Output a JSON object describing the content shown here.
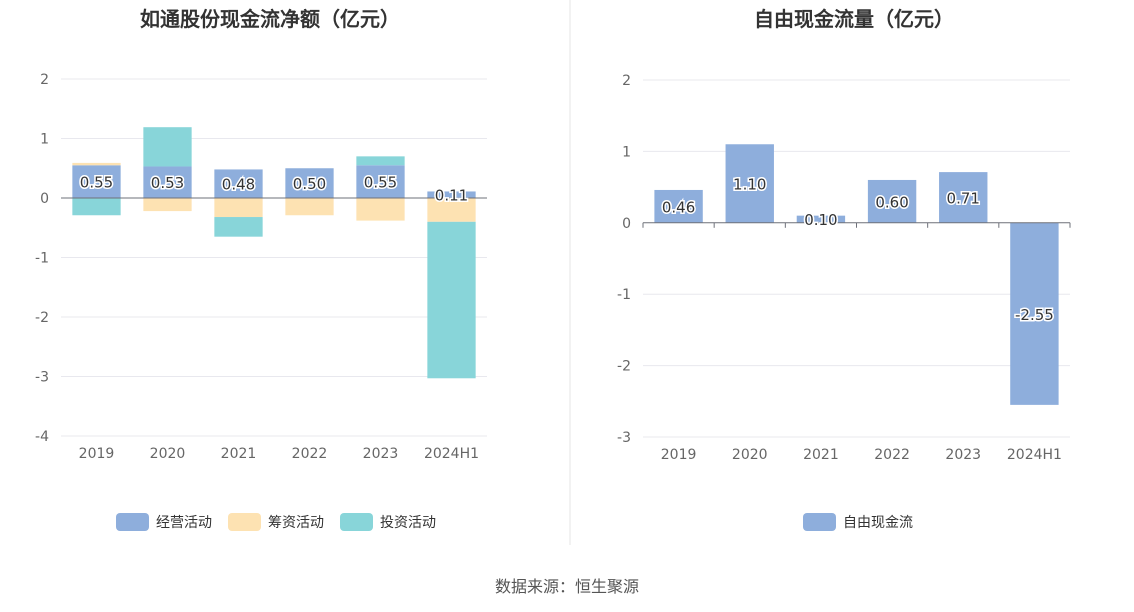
{
  "chart_data": [
    {
      "type": "bar",
      "stacked": true,
      "title": "如通股份现金流净额（亿元）",
      "categories": [
        "2019",
        "2020",
        "2021",
        "2022",
        "2023",
        "2024H1"
      ],
      "ylim": [
        -4,
        2
      ],
      "yticks": [
        2,
        1,
        0,
        -1,
        -2,
        -3,
        -4
      ],
      "grid": true,
      "legend_position": "bottom",
      "series": [
        {
          "name": "经营活动",
          "color": "#8eaedc",
          "values": [
            0.55,
            0.53,
            0.48,
            0.5,
            0.55,
            0.11
          ],
          "labels": [
            "0.55",
            "0.53",
            "0.48",
            "0.50",
            "0.55",
            "0.11"
          ]
        },
        {
          "name": "筹资活动",
          "color": "#fde2b2",
          "values": [
            0.04,
            -0.22,
            -0.32,
            -0.29,
            -0.38,
            -0.4
          ]
        },
        {
          "name": "投资活动",
          "color": "#88d5d9",
          "values": [
            -0.29,
            0.66,
            -0.33,
            0.0,
            0.15,
            -2.63
          ]
        }
      ]
    },
    {
      "type": "bar",
      "title": "自由现金流量（亿元）",
      "categories": [
        "2019",
        "2020",
        "2021",
        "2022",
        "2023",
        "2024H1"
      ],
      "ylim": [
        -3,
        2
      ],
      "yticks": [
        2,
        1,
        0,
        -1,
        -2,
        -3
      ],
      "grid": true,
      "legend_position": "bottom",
      "series": [
        {
          "name": "自由现金流",
          "color": "#8eaedc",
          "values": [
            0.46,
            1.1,
            0.1,
            0.6,
            0.71,
            -2.55
          ],
          "labels": [
            "0.46",
            "1.10",
            "0.10",
            "0.60",
            "0.71",
            "-2.55"
          ]
        }
      ]
    }
  ],
  "source": "数据来源：恒生聚源"
}
